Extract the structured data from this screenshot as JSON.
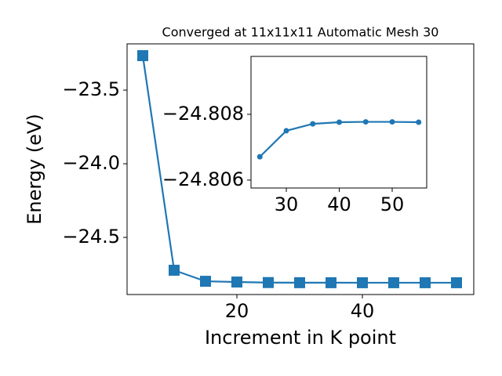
{
  "chart_data": [
    {
      "type": "line",
      "title": "Converged at 11x11x11 Automatic Mesh 30",
      "x_label": "Increment in K point",
      "y_label": "Energy (eV)",
      "x": [
        5,
        10,
        15,
        20,
        25,
        30,
        35,
        40,
        45,
        50,
        55
      ],
      "series": [
        {
          "color": "#1f77b4",
          "marker": "square",
          "values": [
            -23.266,
            -24.723,
            -24.798,
            -24.803,
            -24.8067,
            -24.8075,
            -24.8077,
            -24.8078,
            -24.8078,
            -24.8078,
            -24.8078
          ]
        }
      ],
      "xlim": [
        2.5,
        57.75
      ],
      "xticks": [
        20,
        40
      ],
      "ylim": [
        -24.888,
        -23.186
      ],
      "yticks": [
        {
          "value": -24.5,
          "label": "−24.5"
        },
        {
          "value": -24.0,
          "label": "−24.0"
        },
        {
          "value": -23.5,
          "label": "−23.5"
        }
      ]
    },
    {
      "type": "line",
      "x": [
        25,
        30,
        35,
        40,
        45,
        50,
        55
      ],
      "series": [
        {
          "color": "#1f77b4",
          "marker": "circle",
          "values": [
            -24.80671,
            -24.8075,
            -24.80771,
            -24.80776,
            -24.80777,
            -24.80777,
            -24.80776
          ]
        }
      ],
      "xlim": [
        23.33,
        56.52
      ],
      "xticks": [
        30,
        40,
        50
      ],
      "ylim": [
        -24.80576,
        -24.80976
      ],
      "yticks": [
        {
          "value": -24.806,
          "label": "−24.806"
        },
        {
          "value": -24.808,
          "label": "−24.808"
        }
      ]
    }
  ]
}
